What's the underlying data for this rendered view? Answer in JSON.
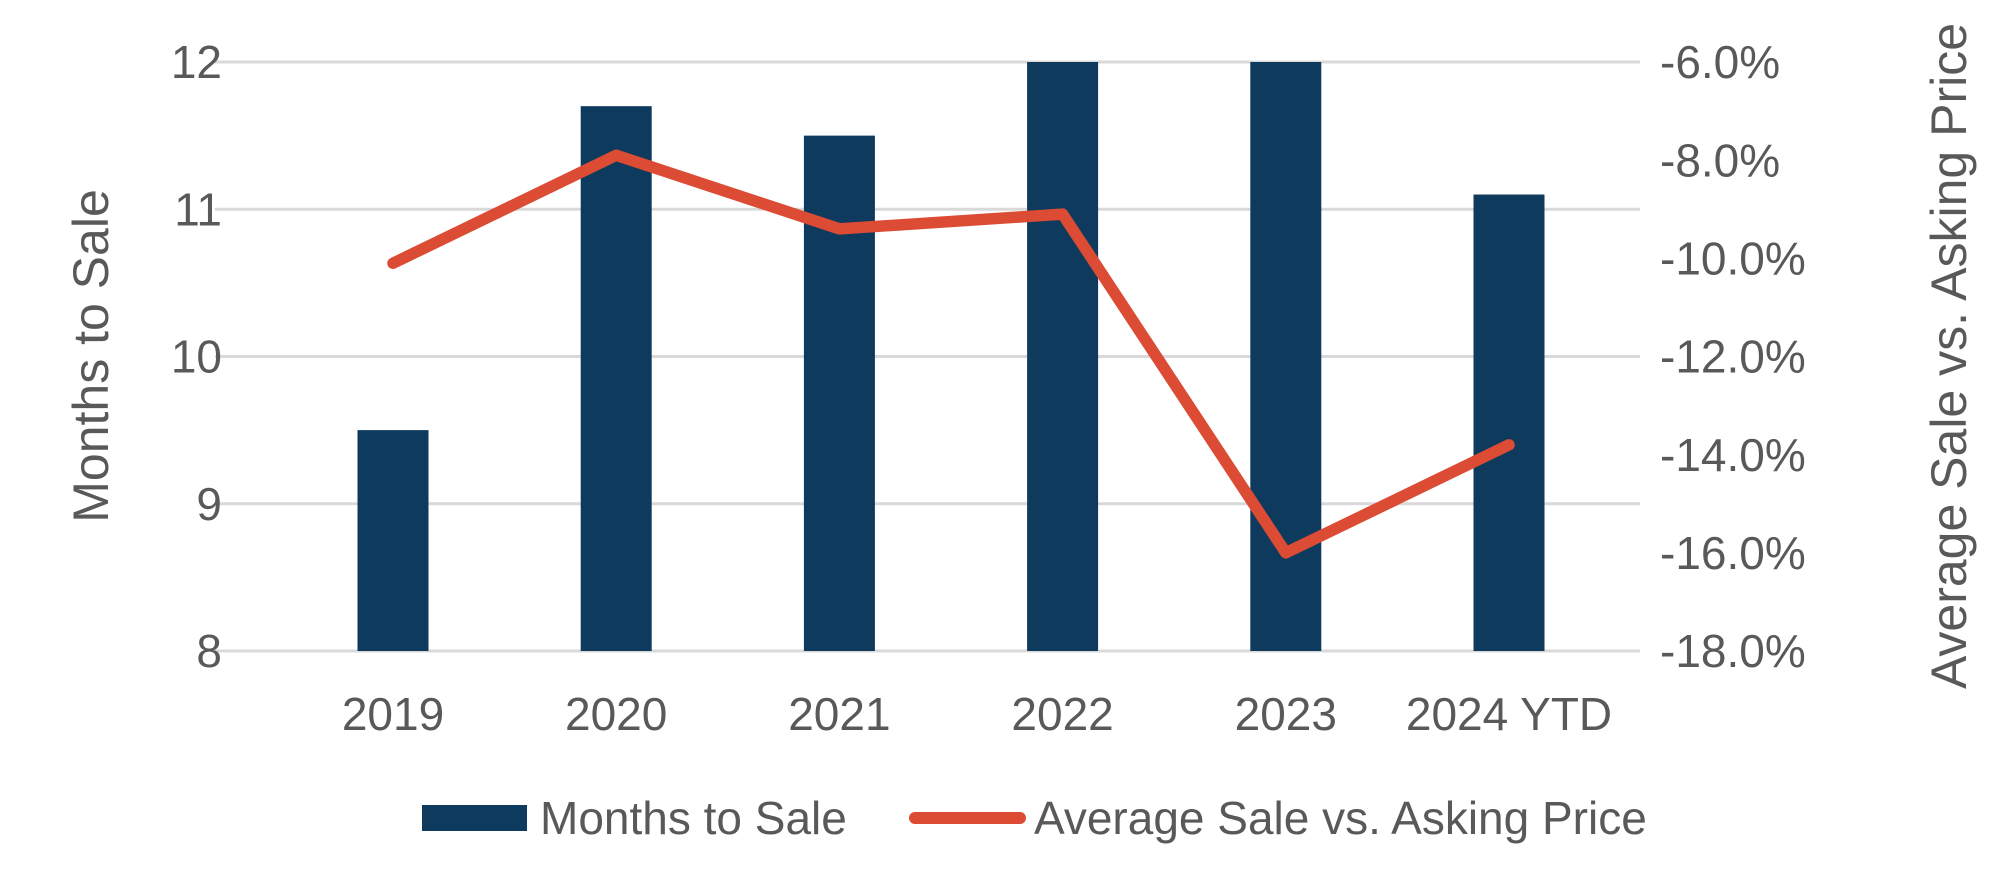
{
  "chart_data": {
    "type": "combo-bar-line",
    "title": "",
    "categories": [
      "2019",
      "2020",
      "2021",
      "2022",
      "2023",
      "2024 YTD"
    ],
    "series": [
      {
        "name": "Months to Sale",
        "type": "bar",
        "axis": "left",
        "color": "#0e3a5e",
        "values": [
          9.5,
          11.7,
          11.5,
          12.0,
          12.0,
          11.1
        ]
      },
      {
        "name": "Average Sale vs. Asking Price",
        "type": "line",
        "axis": "right",
        "color": "#dc4b33",
        "values": [
          -10.1,
          -7.9,
          -9.4,
          -9.1,
          -16.0,
          -13.8
        ]
      }
    ],
    "y_left": {
      "label": "Months to Sale",
      "min": 8,
      "max": 12,
      "tick_values": [
        12,
        11,
        10,
        9,
        8
      ],
      "tick_labels": [
        "12",
        "11",
        "10",
        "9",
        "8"
      ]
    },
    "y_right": {
      "label": "Average Sale vs. Asking Price",
      "min": -18,
      "max": -6,
      "tick_values": [
        -6,
        -8,
        -10,
        -12,
        -14,
        -16,
        -18
      ],
      "tick_labels": [
        "-6.0%",
        "-8.0%",
        "-10.0%",
        "-12.0%",
        "-14.0%",
        "-16.0%",
        "-18.0%"
      ]
    },
    "grid": "horizontal",
    "legend_position": "bottom",
    "colors": {
      "bar": "#0e3a5e",
      "line": "#dc4b33",
      "gridline": "#d9d9d9",
      "text": "#595959",
      "background": "#ffffff"
    }
  }
}
